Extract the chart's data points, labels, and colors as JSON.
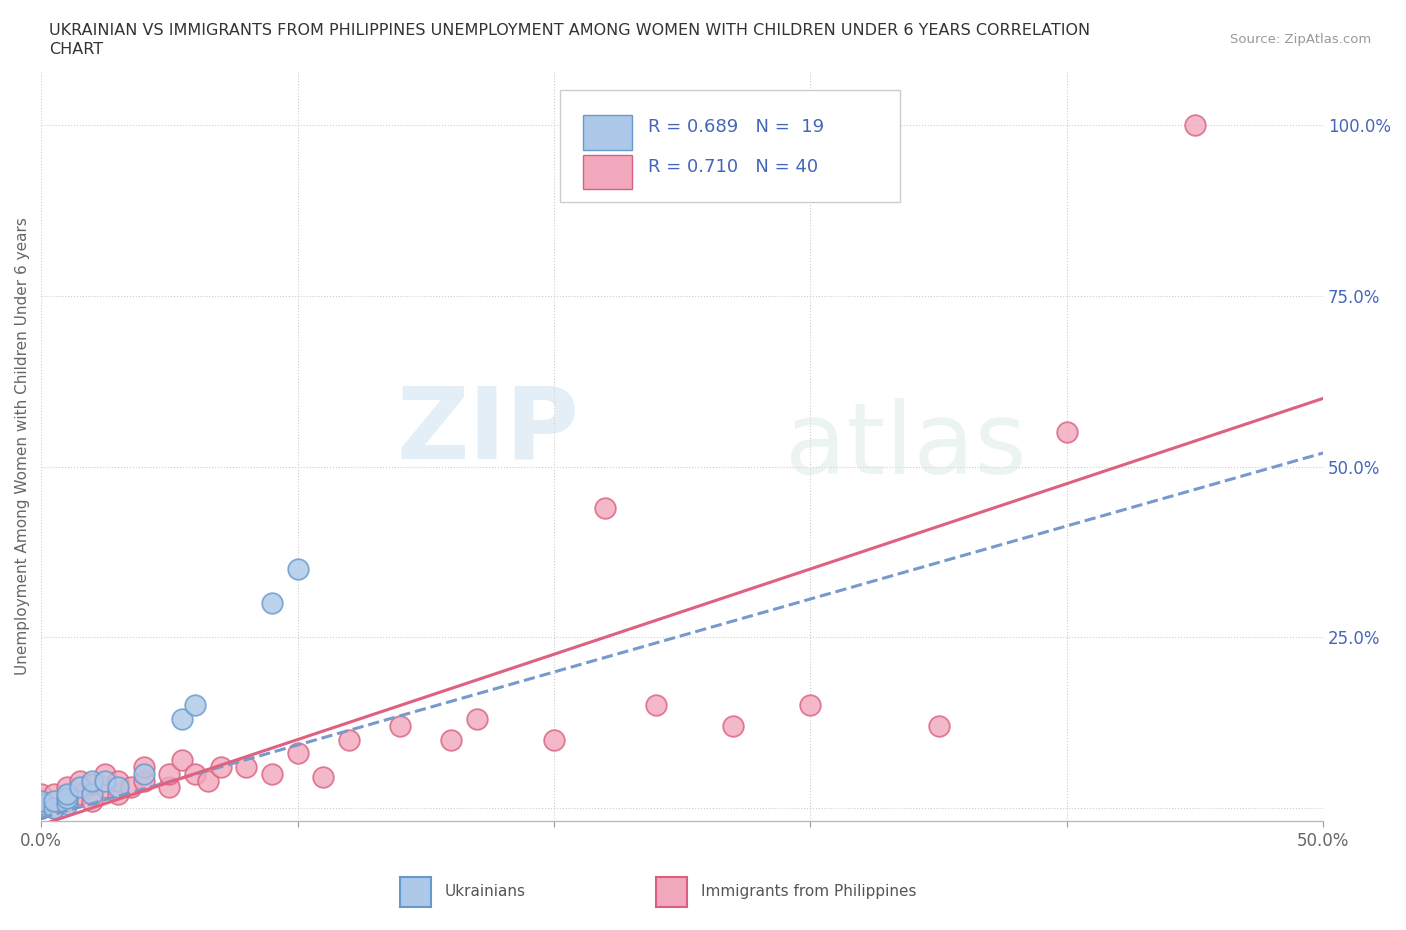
{
  "title_line1": "UKRAINIAN VS IMMIGRANTS FROM PHILIPPINES UNEMPLOYMENT AMONG WOMEN WITH CHILDREN UNDER 6 YEARS CORRELATION",
  "title_line2": "CHART",
  "source": "Source: ZipAtlas.com",
  "ylabel": "Unemployment Among Women with Children Under 6 years",
  "xlim": [
    0.0,
    0.5
  ],
  "ylim": [
    -0.02,
    1.08
  ],
  "legend_R1": "R = 0.689",
  "legend_N1": "N =  19",
  "legend_R2": "R = 0.710",
  "legend_N2": "N = 40",
  "color_ukrainian": "#adc8e8",
  "color_philippines": "#f2a8bc",
  "color_edge_ukrainian": "#6699cc",
  "color_edge_philippines": "#d96080",
  "color_line_ukrainian": "#7799cc",
  "color_line_philippines": "#e06080",
  "color_text_blue": "#4466bb",
  "watermark_zip": "ZIP",
  "watermark_atlas": "atlas",
  "background_color": "#ffffff",
  "grid_color": "#cccccc",
  "ukrainians_x": [
    0.0,
    0.0,
    0.0,
    0.0,
    0.005,
    0.005,
    0.01,
    0.01,
    0.01,
    0.015,
    0.02,
    0.02,
    0.025,
    0.03,
    0.04,
    0.055,
    0.06,
    0.09,
    0.1
  ],
  "ukrainians_y": [
    0.0,
    0.0,
    0.005,
    0.01,
    0.0,
    0.01,
    0.005,
    0.015,
    0.02,
    0.03,
    0.02,
    0.04,
    0.04,
    0.03,
    0.05,
    0.13,
    0.15,
    0.3,
    0.35
  ],
  "philippines_x": [
    0.0,
    0.0,
    0.0,
    0.005,
    0.005,
    0.01,
    0.01,
    0.015,
    0.015,
    0.02,
    0.02,
    0.025,
    0.025,
    0.03,
    0.03,
    0.035,
    0.04,
    0.04,
    0.05,
    0.05,
    0.055,
    0.06,
    0.065,
    0.07,
    0.08,
    0.09,
    0.1,
    0.11,
    0.12,
    0.14,
    0.16,
    0.17,
    0.2,
    0.22,
    0.24,
    0.27,
    0.3,
    0.35,
    0.4,
    0.45
  ],
  "philippines_y": [
    0.0,
    0.01,
    0.02,
    0.0,
    0.02,
    0.01,
    0.03,
    0.02,
    0.04,
    0.01,
    0.035,
    0.03,
    0.05,
    0.02,
    0.04,
    0.03,
    0.04,
    0.06,
    0.03,
    0.05,
    0.07,
    0.05,
    0.04,
    0.06,
    0.06,
    0.05,
    0.08,
    0.045,
    0.1,
    0.12,
    0.1,
    0.13,
    0.1,
    0.44,
    0.15,
    0.12,
    0.15,
    0.12,
    0.55,
    1.0
  ],
  "line_ukr_x0": 0.0,
  "line_ukr_y0": -0.015,
  "line_ukr_x1": 0.5,
  "line_ukr_y1": 0.52,
  "line_phi_x0": 0.0,
  "line_phi_y0": -0.025,
  "line_phi_x1": 0.5,
  "line_phi_y1": 0.6
}
